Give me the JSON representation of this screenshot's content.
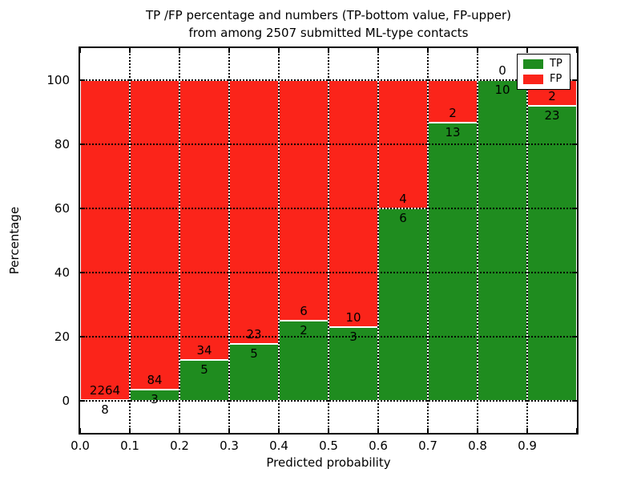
{
  "figure": {
    "title_line1": "TP /FP percentage and numbers (TP-bottom value, FP-upper)",
    "title_line2": "from among 2507 submitted ML-type contacts"
  },
  "chart_data": {
    "type": "bar",
    "stacked": true,
    "normalized_to_percent": true,
    "title": "TP /FP percentage and numbers (TP-bottom value, FP-upper) from among 2507 submitted ML-type contacts",
    "total_contacts": 2507,
    "xlabel": "Predicted probability",
    "ylabel": "Percentage",
    "xlim": [
      0.0,
      1.0
    ],
    "ylim": [
      -10,
      110
    ],
    "bin_width": 0.1,
    "x_tick_labels": [
      "0.0",
      "0.1",
      "0.2",
      "0.3",
      "0.4",
      "0.5",
      "0.6",
      "0.7",
      "0.8",
      "0.9"
    ],
    "y_tick_values": [
      0,
      20,
      40,
      60,
      80,
      100
    ],
    "grid": true,
    "categories": [
      "0.0-0.1",
      "0.1-0.2",
      "0.2-0.3",
      "0.3-0.4",
      "0.4-0.5",
      "0.5-0.6",
      "0.6-0.7",
      "0.7-0.8",
      "0.8-0.9",
      "0.9-1.0"
    ],
    "series": [
      {
        "name": "TP",
        "color": "#1f8c1f",
        "position": "bottom",
        "values": [
          8,
          3,
          5,
          5,
          2,
          3,
          6,
          13,
          10,
          23
        ]
      },
      {
        "name": "FP",
        "color": "#fb241a",
        "position": "top",
        "values": [
          2264,
          84,
          34,
          23,
          6,
          10,
          4,
          2,
          0,
          2
        ]
      }
    ],
    "tp_percent_per_bin": [
      0.35,
      3.45,
      12.82,
      17.86,
      25.0,
      23.08,
      60.0,
      86.67,
      100.0,
      92.0
    ],
    "legend": {
      "position": "upper right",
      "entries": [
        {
          "label": "TP",
          "color": "#1f8c1f"
        },
        {
          "label": "FP",
          "color": "#fb241a"
        }
      ]
    }
  }
}
